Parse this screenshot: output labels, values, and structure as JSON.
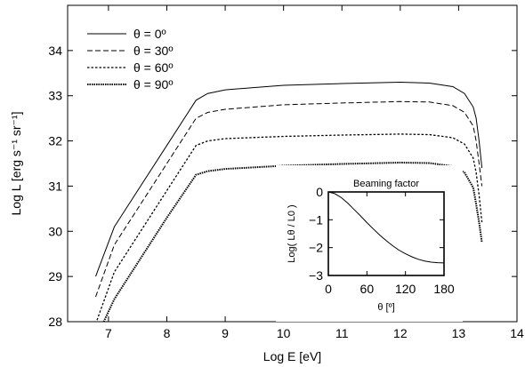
{
  "chart_data": [
    {
      "type": "line",
      "title": "",
      "xlabel": "Log E [eV]",
      "ylabel": "Log L [erg s⁻¹ sr⁻¹]",
      "xlim": [
        6.3,
        14
      ],
      "ylim": [
        28,
        35
      ],
      "xticks": [
        7,
        8,
        9,
        10,
        11,
        12,
        13,
        14
      ],
      "yticks": [
        28,
        29,
        30,
        31,
        32,
        33,
        34
      ],
      "legend_position": "top-left",
      "series": [
        {
          "name": "θ = 0º",
          "style": "solid",
          "x": [
            6.78,
            7.1,
            7.5,
            8.0,
            8.5,
            8.7,
            9.0,
            10.0,
            11.0,
            12.0,
            12.5,
            12.9,
            13.1,
            13.25,
            13.3,
            13.35,
            13.4
          ],
          "y": [
            29.0,
            30.1,
            30.9,
            31.9,
            32.9,
            33.05,
            33.13,
            33.23,
            33.27,
            33.3,
            33.28,
            33.2,
            33.05,
            32.75,
            32.5,
            32.0,
            31.4
          ]
        },
        {
          "name": "θ = 30º",
          "style": "dashed",
          "x": [
            6.78,
            7.1,
            7.5,
            8.0,
            8.5,
            8.7,
            9.0,
            10.0,
            11.0,
            12.0,
            12.5,
            12.9,
            13.1,
            13.25,
            13.3,
            13.35,
            13.4
          ],
          "y": [
            28.55,
            29.7,
            30.5,
            31.5,
            32.5,
            32.63,
            32.7,
            32.8,
            32.84,
            32.87,
            32.86,
            32.78,
            32.63,
            32.33,
            32.0,
            31.5,
            31.0
          ]
        },
        {
          "name": "θ = 60º",
          "style": "dotted",
          "x": [
            6.78,
            7.1,
            7.5,
            8.0,
            8.5,
            8.7,
            9.0,
            10.0,
            11.0,
            12.0,
            12.5,
            12.9,
            13.1,
            13.25,
            13.3,
            13.35,
            13.4
          ],
          "y": [
            27.95,
            29.1,
            29.9,
            30.9,
            31.9,
            32.0,
            32.05,
            32.1,
            32.13,
            32.15,
            32.14,
            32.07,
            31.93,
            31.62,
            31.3,
            30.8,
            30.2
          ]
        },
        {
          "name": "θ = 90º",
          "style": "dense-dotted",
          "x": [
            6.9,
            7.1,
            7.5,
            8.0,
            8.5,
            8.7,
            9.0,
            10.0,
            11.0,
            12.0,
            12.5,
            12.9,
            13.1,
            13.25,
            13.3,
            13.35,
            13.4
          ],
          "y": [
            27.95,
            28.5,
            29.3,
            30.3,
            31.25,
            31.33,
            31.38,
            31.45,
            31.49,
            31.52,
            31.51,
            31.44,
            31.3,
            30.97,
            30.6,
            30.2,
            29.75
          ]
        }
      ]
    },
    {
      "type": "line",
      "title": "Beaming factor",
      "xlabel": "θ [º]",
      "ylabel": "Log( Lθ / L0 )",
      "xlim": [
        0,
        180
      ],
      "ylim": [
        -3,
        0
      ],
      "xticks": [
        0,
        60,
        120,
        180
      ],
      "yticks": [
        0,
        -1,
        -2,
        -3
      ],
      "series": [
        {
          "style": "solid",
          "x": [
            0,
            10,
            20,
            30,
            40,
            50,
            60,
            70,
            80,
            90,
            100,
            110,
            120,
            130,
            140,
            150,
            160,
            170,
            180
          ],
          "y": [
            0,
            -0.06,
            -0.2,
            -0.4,
            -0.63,
            -0.86,
            -1.1,
            -1.33,
            -1.55,
            -1.75,
            -1.93,
            -2.09,
            -2.22,
            -2.33,
            -2.42,
            -2.48,
            -2.52,
            -2.54,
            -2.55
          ]
        }
      ]
    }
  ]
}
